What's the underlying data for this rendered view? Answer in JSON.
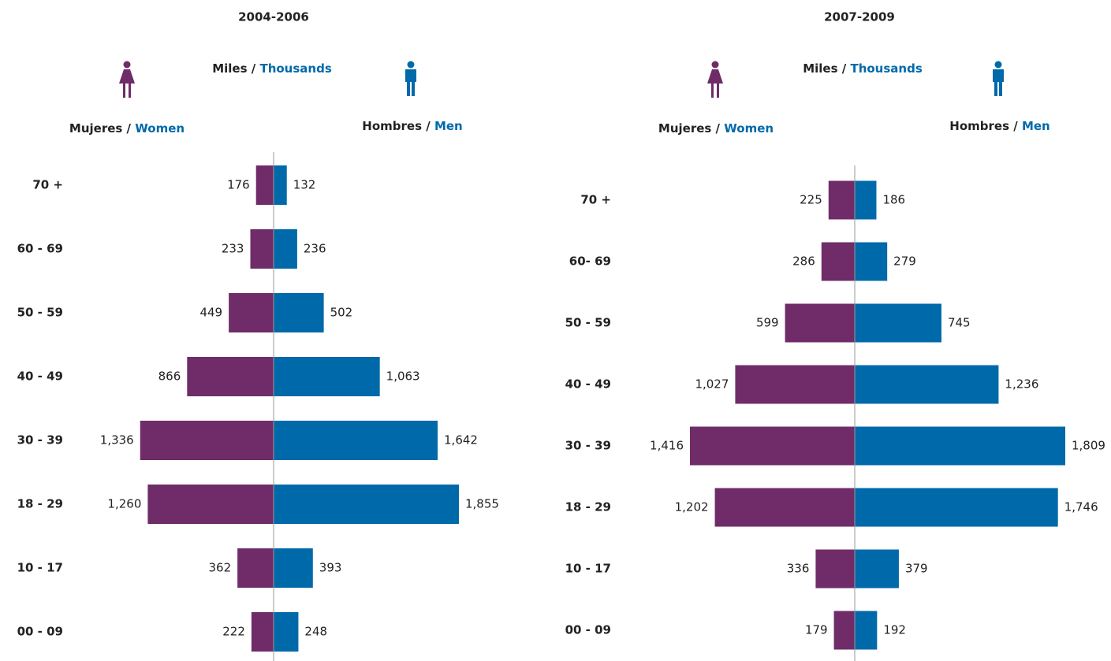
{
  "chart_data": [
    {
      "type": "pyramid",
      "title": "2004-2006",
      "unit_label": "Miles /",
      "unit_label_en": "Thousands",
      "categories": [
        "70 +",
        "60 - 69",
        "50 - 59",
        "40 - 49",
        "30 - 39",
        "18 - 29",
        "10 - 17",
        "00 - 09"
      ],
      "series": [
        {
          "name": "Mujeres /",
          "name_en": "Women",
          "color": "#6f2c68",
          "values": [
            176,
            233,
            449,
            866,
            1336,
            1260,
            362,
            222
          ],
          "value_labels": [
            "176",
            "233",
            "449",
            "866",
            "1,336",
            "1,260",
            "362",
            "222"
          ]
        },
        {
          "name": "Hombres /",
          "name_en": "Men",
          "color": "#0069aa",
          "values": [
            132,
            236,
            502,
            1063,
            1642,
            1855,
            393,
            248
          ],
          "value_labels": [
            "132",
            "236",
            "502",
            "1,063",
            "1,642",
            "1,855",
            "393",
            "248"
          ]
        }
      ]
    },
    {
      "type": "pyramid",
      "title": "2007-2009",
      "unit_label": "Miles /",
      "unit_label_en": "Thousands",
      "categories": [
        "70 +",
        "60- 69",
        "50 - 59",
        "40 - 49",
        "30 - 39",
        "18 - 29",
        "10 - 17",
        "00 - 09"
      ],
      "series": [
        {
          "name": "Mujeres /",
          "name_en": "Women",
          "color": "#6f2c68",
          "values": [
            225,
            286,
            599,
            1027,
            1416,
            1202,
            336,
            179
          ],
          "value_labels": [
            "225",
            "286",
            "599",
            "1,027",
            "1,416",
            "1,202",
            "336",
            "179"
          ]
        },
        {
          "name": "Hombres /",
          "name_en": "Men",
          "color": "#0069aa",
          "values": [
            186,
            279,
            745,
            1236,
            1809,
            1746,
            379,
            192
          ],
          "value_labels": [
            "186",
            "279",
            "745",
            "1,236",
            "1,809",
            "1,746",
            "379",
            "192"
          ]
        }
      ]
    }
  ]
}
